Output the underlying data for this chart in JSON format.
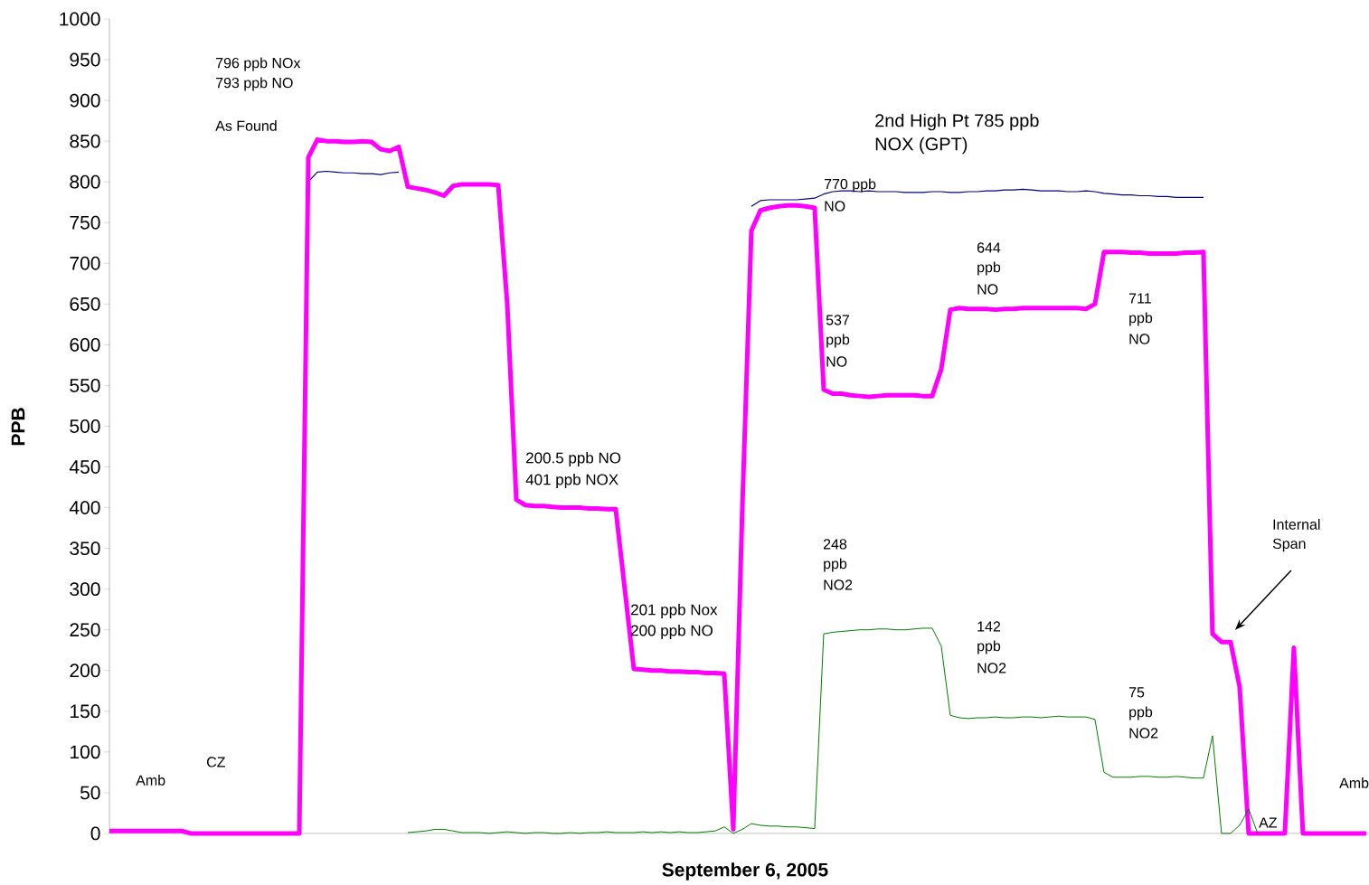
{
  "chart_data": {
    "type": "line",
    "tick_labels": "y",
    "categories": [
      null,
      null,
      null,
      null,
      null,
      null,
      null,
      null,
      null,
      null,
      null,
      null,
      null,
      null,
      null,
      null,
      null,
      null,
      null,
      null,
      null,
      null,
      null,
      null,
      null,
      null,
      null,
      null,
      null,
      null,
      null,
      null,
      null,
      null,
      null,
      null,
      null,
      null,
      null,
      null,
      null,
      null,
      null,
      null,
      null,
      null,
      null,
      null,
      null,
      null,
      null,
      null,
      null,
      null,
      null,
      null,
      null,
      null,
      null,
      null,
      null,
      null,
      null,
      null,
      null,
      null,
      null,
      null,
      null,
      null,
      null,
      null,
      null,
      null,
      null,
      null,
      null,
      null,
      null,
      null,
      null,
      null,
      null,
      null,
      null,
      null,
      null,
      null,
      null,
      null,
      null,
      null,
      null,
      null,
      null,
      null,
      null,
      null,
      null,
      null,
      null,
      null,
      null,
      null,
      null,
      null,
      null,
      null,
      null,
      null,
      null,
      null,
      null,
      null,
      null,
      null,
      null,
      null,
      null,
      null,
      null,
      null,
      null,
      null,
      null,
      null,
      null,
      null,
      null,
      null,
      null,
      null,
      null,
      null,
      null,
      null,
      null,
      null,
      null,
      null
    ],
    "series": [
      {
        "color": "#000080",
        "values": [
          null,
          null,
          null,
          null,
          null,
          null,
          null,
          null,
          null,
          null,
          null,
          null,
          null,
          null,
          null,
          null,
          null,
          null,
          null,
          null,
          null,
          null,
          800,
          812,
          813,
          812,
          811,
          811,
          810,
          810,
          809,
          811,
          812,
          null,
          null,
          null,
          null,
          null,
          null,
          null,
          null,
          null,
          null,
          null,
          null,
          null,
          null,
          null,
          null,
          null,
          null,
          null,
          null,
          null,
          null,
          null,
          null,
          null,
          null,
          null,
          null,
          null,
          null,
          null,
          null,
          null,
          null,
          null,
          null,
          null,
          null,
          770,
          777,
          778,
          778,
          778,
          778,
          779,
          780,
          785,
          788,
          789,
          789,
          788,
          789,
          788,
          788,
          788,
          787,
          787,
          787,
          788,
          788,
          787,
          787,
          788,
          788,
          789,
          789,
          790,
          790,
          791,
          790,
          789,
          789,
          789,
          788,
          788,
          789,
          788,
          786,
          785,
          784,
          784,
          783,
          783,
          782,
          782,
          781,
          781,
          781,
          781,
          null,
          null,
          null,
          null,
          null,
          null,
          null,
          null,
          null,
          null,
          null,
          null,
          null,
          null,
          null,
          null,
          null,
          null
        ]
      },
      {
        "color": "#ff00ff",
        "values": [
          3,
          3,
          3,
          3,
          3,
          3,
          3,
          3,
          3,
          0,
          0,
          0,
          0,
          0,
          0,
          0,
          0,
          0,
          0,
          0,
          0,
          0,
          830,
          852,
          850,
          850,
          849,
          849,
          850,
          849,
          840,
          838,
          843,
          794,
          792,
          790,
          787,
          783,
          795,
          797,
          797,
          797,
          797,
          796,
          650,
          410,
          403,
          402,
          402,
          401,
          400,
          400,
          400,
          399,
          399,
          398,
          398,
          300,
          202,
          201,
          200,
          200,
          199,
          199,
          198,
          198,
          197,
          197,
          196,
          5,
          400,
          740,
          765,
          768,
          770,
          771,
          771,
          770,
          768,
          545,
          540,
          540,
          538,
          537,
          536,
          537,
          538,
          538,
          538,
          538,
          537,
          537,
          570,
          643,
          645,
          644,
          644,
          644,
          643,
          644,
          644,
          645,
          645,
          645,
          645,
          645,
          645,
          645,
          644,
          650,
          714,
          714,
          714,
          713,
          713,
          712,
          712,
          712,
          712,
          713,
          713,
          714,
          245,
          235,
          235,
          180,
          0,
          0,
          0,
          0,
          0,
          228,
          0,
          0,
          0,
          0,
          0,
          0,
          0,
          0
        ]
      },
      {
        "color": "#008000",
        "values": [
          null,
          null,
          null,
          null,
          null,
          null,
          null,
          null,
          null,
          null,
          null,
          null,
          null,
          null,
          null,
          null,
          null,
          null,
          null,
          null,
          null,
          null,
          null,
          null,
          null,
          null,
          null,
          null,
          null,
          null,
          null,
          null,
          null,
          1,
          2,
          3,
          5,
          5,
          3,
          1,
          1,
          1,
          0,
          1,
          2,
          1,
          0,
          1,
          1,
          0,
          0,
          1,
          0,
          1,
          1,
          2,
          1,
          1,
          1,
          2,
          1,
          2,
          1,
          2,
          1,
          1,
          2,
          3,
          8,
          0,
          5,
          12,
          10,
          9,
          9,
          8,
          8,
          7,
          6,
          245,
          247,
          248,
          249,
          250,
          250,
          251,
          251,
          250,
          250,
          251,
          252,
          252,
          230,
          145,
          142,
          141,
          142,
          142,
          143,
          142,
          142,
          143,
          143,
          142,
          143,
          144,
          143,
          143,
          143,
          140,
          75,
          69,
          69,
          69,
          70,
          70,
          69,
          69,
          70,
          69,
          68,
          68,
          120,
          0,
          0,
          10,
          30,
          0,
          null,
          null,
          null,
          null,
          null,
          null,
          null,
          null,
          null,
          null,
          null,
          null
        ]
      }
    ],
    "ylim": [
      0,
      1000
    ],
    "yticks": [
      0,
      50,
      100,
      150,
      200,
      250,
      300,
      350,
      400,
      450,
      500,
      550,
      600,
      650,
      700,
      750,
      800,
      850,
      900,
      950,
      1000
    ],
    "xlabel": "September 6, 2005",
    "ylabel": "PPB",
    "annotations": [
      "796 ppb NOx",
      "793 ppb NO",
      "As Found",
      "2nd High Pt  785 ppb",
      "NOX (GPT)",
      "770 ppb",
      "NO",
      "644",
      "ppb",
      "NO",
      "537",
      "ppb",
      "NO",
      "711",
      "ppb",
      "NO",
      "200.5 ppb NO",
      "401 ppb NOX",
      "Internal",
      "Span",
      "248",
      "ppb",
      "NO2",
      "201 ppb Nox",
      "200 ppb NO",
      "142",
      "ppb",
      "NO2",
      "75",
      "ppb",
      "NO2",
      "Amb",
      "CZ",
      "AZ",
      "Amb"
    ]
  }
}
